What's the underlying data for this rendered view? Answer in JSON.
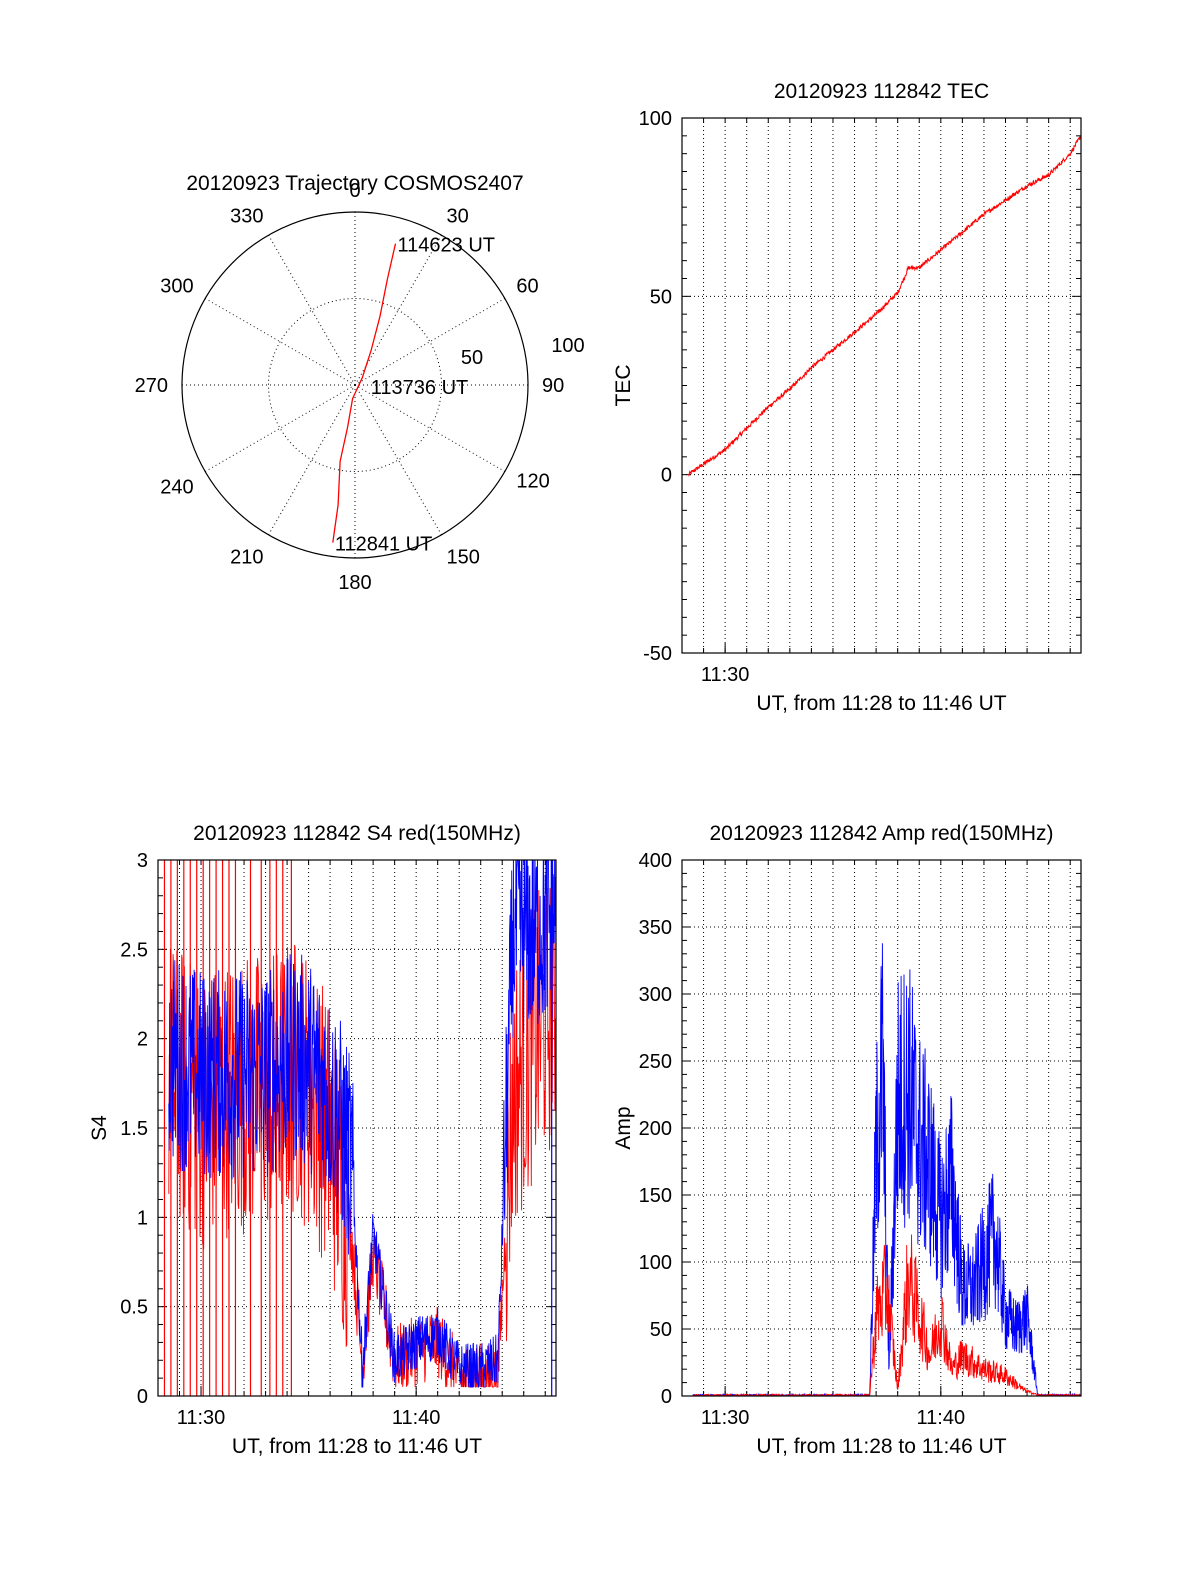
{
  "colors": {
    "red_series": "#ff0000",
    "blue_series": "#0000ff",
    "axes": "#000000"
  },
  "chart_data": [
    {
      "type": "polar",
      "title": "20120923 Trajectory COSMOS2407",
      "azimuth_labels": [
        "0",
        "30",
        "60",
        "90",
        "120",
        "150",
        "180",
        "210",
        "240",
        "270",
        "300",
        "330"
      ],
      "radius_labels": [
        "50",
        "100"
      ],
      "rlim": [
        0,
        100
      ],
      "radius_meaning": "zenith angle",
      "series": [
        {
          "color": "#ff0000",
          "points": [
            {
              "az": 188,
              "r": 92
            },
            {
              "az": 188,
              "r": 70
            },
            {
              "az": 191,
              "r": 45
            },
            {
              "az": 190,
              "r": 25
            },
            {
              "az": 190,
              "r": 8
            },
            {
              "az": 45,
              "r": 6
            },
            {
              "az": 25,
              "r": 22
            },
            {
              "az": 20,
              "r": 42
            },
            {
              "az": 17,
              "r": 64
            },
            {
              "az": 16,
              "r": 85
            }
          ]
        }
      ],
      "annotations": [
        {
          "text": "114623 UT",
          "az": 16,
          "r": 85
        },
        {
          "text": "113736 UT",
          "az": 95,
          "r": 8
        },
        {
          "text": "112841 UT",
          "az": 188,
          "r": 92
        }
      ]
    },
    {
      "type": "line",
      "title": "20120923 112842 TEC",
      "xlabel": "UT, from 11:28 to 11:46 UT",
      "ylabel": "TEC",
      "x_unit": "minutes after 11:28 UT",
      "xlim": [
        0,
        18.5
      ],
      "ylim": [
        -50,
        100
      ],
      "yticks": [
        -50,
        0,
        50,
        100
      ],
      "xticks": [
        {
          "x": 2,
          "label": "11:30"
        }
      ],
      "grid": true,
      "series": [
        {
          "color": "#ff0000",
          "x": [
            0.3,
            1.0,
            2.0,
            3.0,
            4.0,
            5.0,
            6.0,
            7.0,
            8.0,
            9.0,
            10.0,
            10.5,
            11.0,
            12.0,
            13.0,
            14.0,
            15.0,
            16.0,
            17.0,
            18.0,
            18.5
          ],
          "y": [
            0,
            3,
            7,
            13,
            19,
            24,
            30,
            35,
            40,
            45,
            51,
            58,
            58,
            63,
            68,
            73,
            77,
            81,
            84,
            90,
            95
          ]
        }
      ]
    },
    {
      "type": "line",
      "title": "20120923 112842 S4 red(150MHz)",
      "xlabel": "UT, from 11:28 to 11:46 UT",
      "ylabel": "S4",
      "x_unit": "minutes after 11:28 UT",
      "xlim": [
        0,
        18.5
      ],
      "ylim": [
        0,
        3
      ],
      "yticks": [
        0,
        0.5,
        1,
        1.5,
        2,
        2.5,
        3
      ],
      "ytick_labels": [
        "0",
        "0.5",
        "1",
        "1.5",
        "2",
        "2.5",
        "3"
      ],
      "xticks": [
        {
          "x": 2,
          "label": "11:30"
        },
        {
          "x": 12,
          "label": "11:40"
        }
      ],
      "grid": true,
      "series": [
        {
          "color": "#ff0000",
          "x": [
            0.5,
            2.0,
            3.5,
            5.0,
            6.5,
            7.5,
            8.3,
            9.0,
            9.5,
            10.0,
            11.0,
            12.0,
            13.0,
            14.0,
            15.0,
            15.8,
            16.5,
            17.5,
            18.5
          ],
          "y": [
            1.8,
            1.6,
            1.7,
            1.7,
            1.8,
            1.6,
            1.3,
            0.9,
            0.15,
            0.8,
            0.2,
            0.25,
            0.3,
            0.1,
            0.1,
            0.1,
            1.7,
            2.0,
            2.2
          ],
          "drop_to_zero_x": [
            0.3,
            0.6,
            0.9,
            1.2,
            1.5,
            1.8,
            2.1,
            2.4,
            2.7,
            3.0,
            3.3,
            3.6,
            4.3,
            4.8,
            5.2,
            5.5,
            5.8,
            6.2
          ]
        },
        {
          "color": "#0000ff",
          "x": [
            0.5,
            2.0,
            3.5,
            5.0,
            6.5,
            7.5,
            8.3,
            9.0,
            9.5,
            10.0,
            11.0,
            12.0,
            13.0,
            14.0,
            15.0,
            15.8,
            16.5,
            17.5,
            18.5
          ],
          "y": [
            1.9,
            1.8,
            1.8,
            1.8,
            1.9,
            1.8,
            1.6,
            1.3,
            0.15,
            0.9,
            0.2,
            0.3,
            0.35,
            0.15,
            0.15,
            0.2,
            2.6,
            2.6,
            2.7
          ]
        }
      ]
    },
    {
      "type": "line",
      "title": "20120923 112842 Amp red(150MHz)",
      "xlabel": "UT, from 11:28 to 11:46 UT",
      "ylabel": "Amp",
      "x_unit": "minutes after 11:28 UT",
      "xlim": [
        0,
        18.5
      ],
      "ylim": [
        0,
        400
      ],
      "yticks": [
        0,
        50,
        100,
        150,
        200,
        250,
        300,
        350,
        400
      ],
      "xticks": [
        {
          "x": 2,
          "label": "11:30"
        },
        {
          "x": 12,
          "label": "11:40"
        }
      ],
      "grid": true,
      "series": [
        {
          "color": "#ff0000",
          "x": [
            0.5,
            8.0,
            8.7,
            9.0,
            9.5,
            10.0,
            10.5,
            11.0,
            11.5,
            12.0,
            12.5,
            13.0,
            14.0,
            15.0,
            15.8,
            16.5,
            18.5
          ],
          "y": [
            0,
            0,
            0,
            60,
            80,
            5,
            90,
            60,
            30,
            60,
            20,
            30,
            20,
            15,
            5,
            0,
            0
          ]
        },
        {
          "color": "#0000ff",
          "x": [
            0.5,
            8.0,
            8.7,
            9.0,
            9.3,
            9.6,
            10.0,
            10.5,
            11.0,
            11.5,
            12.0,
            12.5,
            13.0,
            13.5,
            14.0,
            14.5,
            15.0,
            15.5,
            16.0,
            16.5,
            18.5
          ],
          "y": [
            0,
            0,
            0,
            180,
            250,
            20,
            220,
            230,
            190,
            170,
            130,
            160,
            80,
            80,
            100,
            120,
            60,
            50,
            60,
            0,
            0
          ]
        }
      ]
    }
  ]
}
